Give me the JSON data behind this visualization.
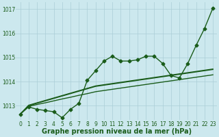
{
  "xlabel": "Graphe pression niveau de la mer (hPa)",
  "xlim": [
    -0.5,
    23.5
  ],
  "ylim": [
    1012.4,
    1017.3
  ],
  "yticks": [
    1013,
    1014,
    1015,
    1016,
    1017
  ],
  "xticks": [
    0,
    1,
    2,
    3,
    4,
    5,
    6,
    7,
    8,
    9,
    10,
    11,
    12,
    13,
    14,
    15,
    16,
    17,
    18,
    19,
    20,
    21,
    22,
    23
  ],
  "bg_color": "#cce8ee",
  "grid_color": "#aacdd6",
  "line_color": "#1a5c1a",
  "line_main": [
    1012.65,
    1012.95,
    1012.85,
    1012.8,
    1012.75,
    1012.5,
    1012.85,
    1013.1,
    1014.05,
    1014.45,
    1014.85,
    1015.05,
    1014.85,
    1014.85,
    1014.9,
    1015.05,
    1015.05,
    1014.75,
    1014.25,
    1014.15,
    1014.75,
    1015.5,
    1016.2,
    1017.05
  ],
  "line2": [
    1012.65,
    1013.0,
    1013.1,
    1013.2,
    1013.3,
    1013.4,
    1013.5,
    1013.6,
    1013.7,
    1013.8,
    1013.85,
    1013.9,
    1013.95,
    1014.0,
    1014.05,
    1014.1,
    1014.15,
    1014.2,
    1014.25,
    1014.3,
    1014.35,
    1014.4,
    1014.45,
    1014.5
  ],
  "line3": [
    1012.65,
    1012.97,
    1013.05,
    1013.12,
    1013.2,
    1013.28,
    1013.35,
    1013.43,
    1013.5,
    1013.58,
    1013.63,
    1013.68,
    1013.73,
    1013.78,
    1013.83,
    1013.88,
    1013.93,
    1013.98,
    1014.03,
    1014.08,
    1014.13,
    1014.18,
    1014.23,
    1014.28
  ],
  "line4": [
    1012.65,
    1013.02,
    1013.12,
    1013.22,
    1013.32,
    1013.42,
    1013.52,
    1013.62,
    1013.72,
    1013.82,
    1013.87,
    1013.92,
    1013.97,
    1014.02,
    1014.07,
    1014.12,
    1014.17,
    1014.22,
    1014.27,
    1014.32,
    1014.37,
    1014.42,
    1014.47,
    1014.52
  ],
  "marker": "D",
  "markersize": 2.5,
  "linewidth": 1.0,
  "tick_fontsize": 5.5,
  "xlabel_fontsize": 7,
  "xlabel_color": "#1a5c1a",
  "tick_color": "#1a5c1a"
}
